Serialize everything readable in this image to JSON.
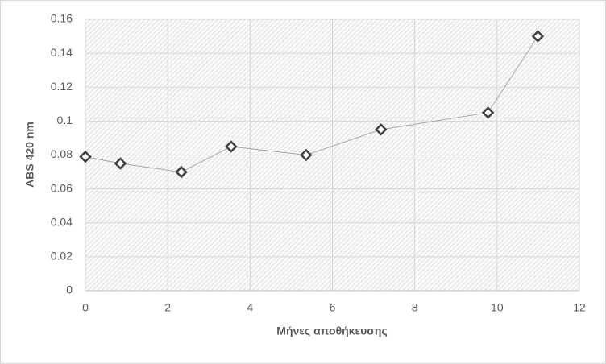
{
  "chart_data": {
    "type": "line",
    "x_label": "Μήνες αποθήκευσης",
    "y_label": "ABS 420 nm",
    "x": [
      0,
      0.85,
      2.33,
      3.54,
      5.36,
      7.18,
      9.78,
      10.99
    ],
    "series": [
      {
        "color": "#404040",
        "values": [
          0.079,
          0.075,
          0.07,
          0.085,
          0.08,
          0.095,
          0.105,
          0.15
        ]
      }
    ],
    "xlim": [
      0,
      12
    ],
    "xticks": [
      0,
      2,
      4,
      6,
      8,
      10,
      12
    ],
    "ylim": [
      0,
      0.16
    ],
    "yticks": [
      0,
      0.02,
      0.04,
      0.06,
      0.08,
      0.1,
      0.12,
      0.14,
      0.16
    ],
    "grid": true
  }
}
